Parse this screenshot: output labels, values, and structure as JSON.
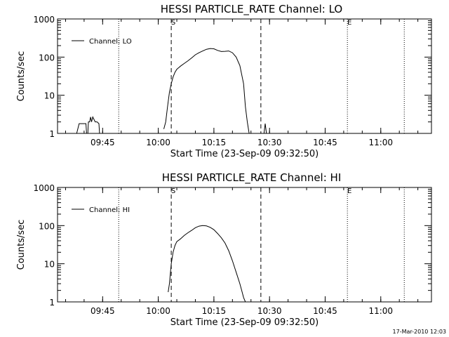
{
  "timestamp": "17-Mar-2010 12:03",
  "chart_data": [
    {
      "type": "line",
      "title": "HESSI PARTICLE_RATE Channel: LO",
      "xlabel": "Start Time (23-Sep-09 09:32:50)",
      "ylabel": "Counts/sec",
      "yscale": "log",
      "xlim": [
        "09:32:50",
        "11:13:40"
      ],
      "ylim": [
        1,
        1000
      ],
      "x_ticks": [
        "09:45",
        "10:00",
        "10:15",
        "10:30",
        "10:45",
        "11:00"
      ],
      "y_ticks": [
        "1",
        "10",
        "100",
        "1000"
      ],
      "legend": {
        "label": "Channel: LO",
        "position": "top-left"
      },
      "vlines": [
        {
          "x": "09:49:20",
          "style": "dotted"
        },
        {
          "x": "10:03:30",
          "style": "dashed",
          "label": "S"
        },
        {
          "x": "10:27:40",
          "style": "dashed"
        },
        {
          "x": "10:51:00",
          "style": "dotted",
          "label": "E"
        },
        {
          "x": "11:06:20",
          "style": "dotted"
        }
      ],
      "series": [
        {
          "name": "Channel: LO",
          "segments": [
            {
              "x": [
                "09:38:00",
                "09:38:40",
                "09:39:30",
                "09:40:00",
                "09:40:30",
                "09:40:40",
                "09:41:00",
                "09:41:10",
                "09:41:30",
                "09:41:45",
                "09:42:00",
                "09:42:20",
                "09:43:00",
                "09:43:30",
                "09:44:00",
                "09:44:10",
                "09:44:40"
              ],
              "y": [
                1,
                1.8,
                1.8,
                1.8,
                1.8,
                1,
                1,
                2,
                2,
                2.7,
                2,
                2.7,
                2,
                2,
                1.8,
                1,
                1
              ]
            },
            {
              "x": [
                "10:01:30",
                "10:02:00",
                "10:02:30",
                "10:03:00",
                "10:03:30",
                "10:04:00",
                "10:04:30",
                "10:05:00",
                "10:06:00",
                "10:07:00",
                "10:08:00",
                "10:09:00",
                "10:10:00",
                "10:11:00",
                "10:12:00",
                "10:13:00",
                "10:14:00",
                "10:15:00",
                "10:16:00",
                "10:17:00",
                "10:18:00",
                "10:19:00",
                "10:20:00",
                "10:21:00",
                "10:22:00",
                "10:23:00",
                "10:23:30",
                "10:24:00",
                "10:24:30"
              ],
              "y": [
                1.3,
                2,
                5,
                12,
                20,
                30,
                40,
                48,
                58,
                68,
                80,
                95,
                115,
                130,
                145,
                160,
                168,
                165,
                150,
                140,
                142,
                145,
                130,
                100,
                60,
                20,
                5,
                2,
                1
              ]
            },
            {
              "x": [
                "10:28:30",
                "10:28:50",
                "10:29:10"
              ],
              "y": [
                1,
                1.8,
                1
              ]
            }
          ]
        }
      ]
    },
    {
      "type": "line",
      "title": "HESSI PARTICLE_RATE Channel: HI",
      "xlabel": "Start Time (23-Sep-09 09:32:50)",
      "ylabel": "Counts/sec",
      "yscale": "log",
      "xlim": [
        "09:32:50",
        "11:13:40"
      ],
      "ylim": [
        1,
        1000
      ],
      "x_ticks": [
        "09:45",
        "10:00",
        "10:15",
        "10:30",
        "10:45",
        "11:00"
      ],
      "y_ticks": [
        "1",
        "10",
        "100",
        "1000"
      ],
      "legend": {
        "label": "Channel: HI",
        "position": "top-left"
      },
      "vlines": [
        {
          "x": "09:49:20",
          "style": "dotted"
        },
        {
          "x": "10:03:30",
          "style": "dashed",
          "label": "S"
        },
        {
          "x": "10:27:40",
          "style": "dashed"
        },
        {
          "x": "10:51:00",
          "style": "dotted",
          "label": "E"
        },
        {
          "x": "11:06:20",
          "style": "dotted"
        }
      ],
      "series": [
        {
          "name": "Channel: HI",
          "segments": [
            {
              "x": [
                "10:02:40",
                "10:03:00",
                "10:03:30",
                "10:04:00",
                "10:04:30",
                "10:05:00",
                "10:06:00",
                "10:07:00",
                "10:08:00",
                "10:09:00",
                "10:10:00",
                "10:11:00",
                "10:12:00",
                "10:13:00",
                "10:14:00",
                "10:15:00",
                "10:16:00",
                "10:17:00",
                "10:18:00",
                "10:19:00",
                "10:20:00",
                "10:21:00",
                "10:22:00",
                "10:22:30",
                "10:23:00",
                "10:23:30"
              ],
              "y": [
                1.8,
                3,
                10,
                20,
                30,
                38,
                45,
                55,
                65,
                75,
                88,
                97,
                100,
                98,
                90,
                78,
                62,
                48,
                35,
                22,
                12,
                6,
                3,
                2,
                1.3,
                1
              ]
            }
          ]
        }
      ]
    }
  ]
}
